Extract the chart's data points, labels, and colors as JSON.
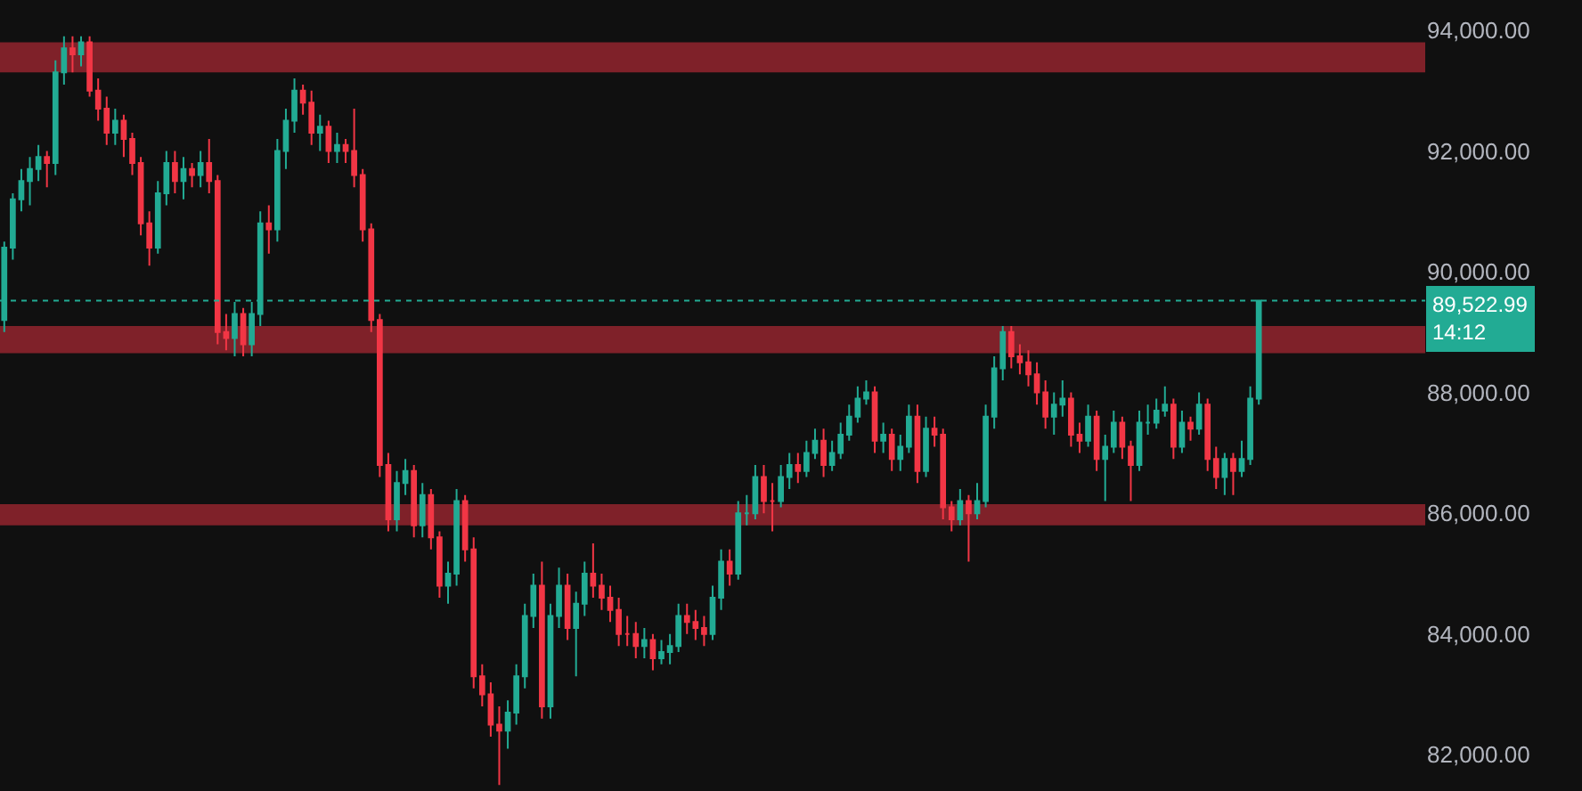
{
  "chart_data": {
    "type": "candlestick",
    "categories": [
      null,
      null,
      null,
      null,
      null,
      null,
      null,
      null,
      null,
      null,
      null,
      null,
      null,
      null,
      null,
      null,
      null,
      null,
      null,
      null,
      null,
      null,
      null,
      null,
      null,
      null,
      null,
      null,
      null,
      null,
      null,
      null,
      null,
      null,
      null,
      null,
      null,
      null,
      null,
      null,
      null,
      null,
      null,
      null,
      null,
      null,
      null,
      null,
      null,
      null,
      null,
      null,
      null,
      null,
      null,
      null,
      null,
      null,
      null,
      null,
      null,
      null,
      null,
      null,
      null,
      null,
      null,
      null,
      null,
      null,
      null,
      null,
      null,
      null,
      null,
      null,
      null,
      null,
      null,
      null,
      null,
      null,
      null,
      null,
      null,
      null,
      null,
      null,
      null,
      null,
      null,
      null,
      null,
      null,
      null,
      null,
      null,
      null,
      null,
      null,
      null,
      null,
      null,
      null,
      null,
      null,
      null,
      null,
      null,
      null,
      null,
      null,
      null,
      null,
      null,
      null,
      null,
      null,
      null,
      null,
      null,
      null,
      null,
      null,
      null,
      null,
      null,
      null,
      null,
      null,
      null,
      null,
      null,
      null,
      null,
      null,
      null,
      null,
      null,
      null,
      null,
      null,
      null,
      null,
      null,
      null,
      null,
      null,
      null,
      null,
      null,
      null,
      null,
      null,
      null,
      null,
      null,
      null,
      null,
      null,
      null,
      null,
      null,
      null,
      null,
      null,
      null
    ],
    "ohlc": [
      [
        89200,
        90500,
        89000,
        90400
      ],
      [
        90400,
        91300,
        90200,
        91200
      ],
      [
        91200,
        91700,
        91000,
        91500
      ],
      [
        91500,
        91900,
        91100,
        91700
      ],
      [
        91700,
        92100,
        91500,
        91900
      ],
      [
        91900,
        92000,
        91400,
        91800
      ],
      [
        91800,
        93500,
        91600,
        93300
      ],
      [
        93300,
        93900,
        93100,
        93700
      ],
      [
        93700,
        93900,
        93300,
        93600
      ],
      [
        93600,
        93900,
        93400,
        93800
      ],
      [
        93800,
        93900,
        92900,
        93000
      ],
      [
        93000,
        93200,
        92500,
        92700
      ],
      [
        92700,
        92900,
        92100,
        92300
      ],
      [
        92300,
        92700,
        92100,
        92500
      ],
      [
        92500,
        92600,
        91900,
        92200
      ],
      [
        92200,
        92300,
        91600,
        91800
      ],
      [
        91800,
        91900,
        90600,
        90800
      ],
      [
        90800,
        91000,
        90100,
        90400
      ],
      [
        90400,
        91500,
        90300,
        91300
      ],
      [
        91300,
        92000,
        91100,
        91800
      ],
      [
        91800,
        92000,
        91300,
        91500
      ],
      [
        91500,
        91900,
        91200,
        91700
      ],
      [
        91700,
        91800,
        91400,
        91600
      ],
      [
        91600,
        92000,
        91400,
        91800
      ],
      [
        91800,
        92200,
        91300,
        91500
      ],
      [
        91500,
        91600,
        88800,
        89000
      ],
      [
        89000,
        89300,
        88700,
        88900
      ],
      [
        88900,
        89500,
        88600,
        89300
      ],
      [
        89300,
        89400,
        88600,
        88800
      ],
      [
        88800,
        89500,
        88600,
        89300
      ],
      [
        89300,
        91000,
        89100,
        90800
      ],
      [
        90800,
        91100,
        90300,
        90700
      ],
      [
        90700,
        92200,
        90500,
        92000
      ],
      [
        92000,
        92700,
        91700,
        92500
      ],
      [
        92500,
        93200,
        92300,
        93000
      ],
      [
        93000,
        93100,
        92600,
        92800
      ],
      [
        92800,
        93000,
        92100,
        92300
      ],
      [
        92300,
        92600,
        92000,
        92400
      ],
      [
        92400,
        92500,
        91800,
        92000
      ],
      [
        92000,
        92300,
        91800,
        92100
      ],
      [
        92100,
        92200,
        91800,
        92000
      ],
      [
        92000,
        92700,
        91400,
        91600
      ],
      [
        91600,
        91700,
        90500,
        90700
      ],
      [
        90700,
        90800,
        89000,
        89200
      ],
      [
        89200,
        89300,
        86600,
        86800
      ],
      [
        86800,
        87000,
        85700,
        85900
      ],
      [
        85900,
        86700,
        85700,
        86500
      ],
      [
        86500,
        86900,
        86300,
        86700
      ],
      [
        86700,
        86800,
        85600,
        85800
      ],
      [
        85800,
        86500,
        85600,
        86300
      ],
      [
        86300,
        86400,
        85400,
        85600
      ],
      [
        85600,
        85700,
        84600,
        84800
      ],
      [
        84800,
        85200,
        84500,
        85000
      ],
      [
        85000,
        86400,
        84800,
        86200
      ],
      [
        86200,
        86300,
        85200,
        85400
      ],
      [
        85400,
        85600,
        83100,
        83300
      ],
      [
        83300,
        83500,
        82800,
        83000
      ],
      [
        83000,
        83200,
        82300,
        82500
      ],
      [
        82500,
        82800,
        81500,
        82400
      ],
      [
        82400,
        82900,
        82100,
        82700
      ],
      [
        82700,
        83500,
        82500,
        83300
      ],
      [
        83300,
        84500,
        83100,
        84300
      ],
      [
        84300,
        85000,
        84100,
        84800
      ],
      [
        84800,
        85200,
        82600,
        82800
      ],
      [
        82800,
        84500,
        82600,
        84300
      ],
      [
        84300,
        85100,
        84100,
        84800
      ],
      [
        84800,
        85000,
        83900,
        84100
      ],
      [
        84100,
        84700,
        83300,
        84500
      ],
      [
        84500,
        85200,
        84300,
        85000
      ],
      [
        85000,
        85500,
        84600,
        84800
      ],
      [
        84800,
        85000,
        84400,
        84600
      ],
      [
        84600,
        84800,
        84200,
        84400
      ],
      [
        84400,
        84600,
        83800,
        84000
      ],
      [
        84000,
        84300,
        83800,
        84000
      ],
      [
        84000,
        84200,
        83600,
        83800
      ],
      [
        83800,
        84100,
        83600,
        83900
      ],
      [
        83900,
        84000,
        83400,
        83600
      ],
      [
        83600,
        83900,
        83500,
        83700
      ],
      [
        83700,
        84000,
        83500,
        83800
      ],
      [
        83800,
        84500,
        83700,
        84300
      ],
      [
        84300,
        84500,
        84000,
        84200
      ],
      [
        84200,
        84400,
        83900,
        84100
      ],
      [
        84100,
        84300,
        83800,
        84000
      ],
      [
        84000,
        84800,
        83900,
        84600
      ],
      [
        84600,
        85400,
        84400,
        85200
      ],
      [
        85200,
        85400,
        84800,
        85000
      ],
      [
        85000,
        86200,
        84900,
        86000
      ],
      [
        86000,
        86300,
        85800,
        86000
      ],
      [
        86000,
        86800,
        85900,
        86600
      ],
      [
        86600,
        86800,
        86000,
        86200
      ],
      [
        86200,
        86500,
        85700,
        86200
      ],
      [
        86200,
        86800,
        86100,
        86600
      ],
      [
        86600,
        87000,
        86400,
        86800
      ],
      [
        86800,
        87000,
        86500,
        86700
      ],
      [
        86700,
        87200,
        86600,
        87000
      ],
      [
        87000,
        87400,
        86900,
        87200
      ],
      [
        87200,
        87400,
        86600,
        86800
      ],
      [
        86800,
        87200,
        86700,
        87000
      ],
      [
        87000,
        87500,
        86900,
        87300
      ],
      [
        87300,
        87800,
        87200,
        87600
      ],
      [
        87600,
        88100,
        87500,
        87900
      ],
      [
        87900,
        88200,
        87800,
        88000
      ],
      [
        88000,
        88100,
        87000,
        87200
      ],
      [
        87200,
        87500,
        87000,
        87300
      ],
      [
        87300,
        87400,
        86700,
        86900
      ],
      [
        86900,
        87300,
        86700,
        87100
      ],
      [
        87100,
        87800,
        87000,
        87600
      ],
      [
        87600,
        87800,
        86500,
        86700
      ],
      [
        86700,
        87600,
        86600,
        87400
      ],
      [
        87400,
        87600,
        87100,
        87300
      ],
      [
        87300,
        87400,
        85900,
        86100
      ],
      [
        86100,
        86200,
        85700,
        85900
      ],
      [
        85900,
        86400,
        85800,
        86200
      ],
      [
        86200,
        86300,
        85200,
        86000
      ],
      [
        86000,
        86500,
        85900,
        86200
      ],
      [
        86200,
        87800,
        86100,
        87600
      ],
      [
        87600,
        88600,
        87400,
        88400
      ],
      [
        88400,
        89100,
        88200,
        89000
      ],
      [
        89000,
        89100,
        88400,
        88600
      ],
      [
        88600,
        88800,
        88300,
        88500
      ],
      [
        88500,
        88700,
        88100,
        88300
      ],
      [
        88300,
        88500,
        87800,
        88000
      ],
      [
        88000,
        88200,
        87400,
        87600
      ],
      [
        87600,
        88000,
        87300,
        87800
      ],
      [
        87800,
        88200,
        87600,
        87900
      ],
      [
        87900,
        88000,
        87100,
        87300
      ],
      [
        87300,
        87500,
        87000,
        87200
      ],
      [
        87200,
        87800,
        87100,
        87600
      ],
      [
        87600,
        87700,
        86700,
        86900
      ],
      [
        86900,
        87300,
        86200,
        87100
      ],
      [
        87100,
        87700,
        87000,
        87500
      ],
      [
        87500,
        87600,
        86900,
        87100
      ],
      [
        87100,
        87200,
        86200,
        86800
      ],
      [
        86800,
        87700,
        86700,
        87500
      ],
      [
        87500,
        87800,
        87300,
        87500
      ],
      [
        87500,
        87900,
        87400,
        87700
      ],
      [
        87700,
        88100,
        87600,
        87800
      ],
      [
        87800,
        87900,
        86900,
        87100
      ],
      [
        87100,
        87700,
        87000,
        87500
      ],
      [
        87500,
        87600,
        87200,
        87400
      ],
      [
        87400,
        88000,
        87300,
        87800
      ],
      [
        87800,
        87900,
        86700,
        86900
      ],
      [
        86900,
        87100,
        86400,
        86600
      ],
      [
        86600,
        87000,
        86300,
        86900
      ],
      [
        86900,
        87000,
        86300,
        86700
      ],
      [
        86700,
        87200,
        86600,
        86900
      ],
      [
        86900,
        88100,
        86800,
        87900
      ],
      [
        87900,
        89522.99,
        87800,
        89522.99
      ],
      null,
      null,
      null,
      null,
      null,
      null,
      null,
      null,
      null,
      null,
      null,
      null,
      null,
      null,
      null,
      null,
      null,
      null,
      null
    ],
    "ylim": [
      81400,
      94500
    ],
    "yticks": [
      {
        "value": 82000,
        "label": "82,000.00"
      },
      {
        "value": 84000,
        "label": "84,000.00"
      },
      {
        "value": 86000,
        "label": "86,000.00"
      },
      {
        "value": 88000,
        "label": "88,000.00"
      },
      {
        "value": 90000,
        "label": "90,000.00"
      },
      {
        "value": 92000,
        "label": "92,000.00"
      },
      {
        "value": 94000,
        "label": "94,000.00"
      }
    ],
    "tick_labels": "y",
    "grid": false,
    "bands": [
      {
        "axis": "y",
        "from": 93300,
        "to": 93800,
        "color": "#7f2129"
      },
      {
        "axis": "y",
        "from": 88650,
        "to": 89100,
        "color": "#7f2129"
      },
      {
        "axis": "y",
        "from": 85800,
        "to": 86150,
        "color": "#7f2129"
      }
    ],
    "ref_lines": [
      {
        "axis": "y",
        "value": 89522.99,
        "label": "89,522.99",
        "color": "#22ab94",
        "line_style": "dotted"
      }
    ],
    "annotations": [
      "14:12"
    ]
  }
}
